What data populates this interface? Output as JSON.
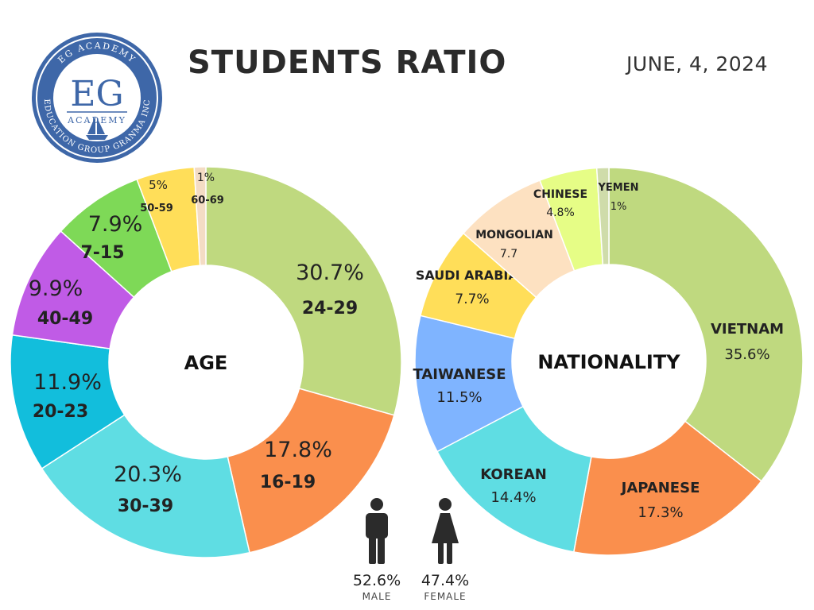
{
  "header": {
    "title": "STUDENTS RATIO",
    "date": "JUNE, 4, 2024"
  },
  "logo": {
    "top_text": "EG ACADEMY",
    "monogram": "EG",
    "sub_text": "ACADEMY",
    "bottom_text": "EDUCATION GROUP GRANMA INC",
    "color": "#3e67a8"
  },
  "gender": {
    "male": {
      "pct": "52.6%",
      "label": "MALE",
      "icon": "male-person-icon"
    },
    "female": {
      "pct": "47.4%",
      "label": "FEMALE",
      "icon": "female-person-icon"
    }
  },
  "chart_data": [
    {
      "type": "pie",
      "title": "AGE",
      "slices": [
        {
          "label": "24-29",
          "value": 30.7,
          "pct_text": "30.7%",
          "color": "#bfd97f"
        },
        {
          "label": "16-19",
          "value": 17.8,
          "pct_text": "17.8%",
          "color": "#fa8f4d"
        },
        {
          "label": "30-39",
          "value": 20.3,
          "pct_text": "20.3%",
          "color": "#5fdde3"
        },
        {
          "label": "20-23",
          "value": 11.9,
          "pct_text": "11.9%",
          "color": "#12bedc"
        },
        {
          "label": "40-49",
          "value": 9.9,
          "pct_text": "9.9%",
          "color": "#c05be6"
        },
        {
          "label": "7-15",
          "value": 7.9,
          "pct_text": "7.9%",
          "color": "#7ed957"
        },
        {
          "label": "50-59",
          "value": 5.0,
          "pct_text": "5%",
          "color": "#ffde59"
        },
        {
          "label": "60-69",
          "value": 1.0,
          "pct_text": "1%",
          "color": "#f4dcc4"
        }
      ]
    },
    {
      "type": "pie",
      "title": "NATIONALITY",
      "slices": [
        {
          "label": "VIETNAM",
          "value": 35.6,
          "pct_text": "35.6%",
          "color": "#bfd97f"
        },
        {
          "label": "JAPANESE",
          "value": 17.3,
          "pct_text": "17.3%",
          "color": "#fa8f4d"
        },
        {
          "label": "KOREAN",
          "value": 14.4,
          "pct_text": "14.4%",
          "color": "#5fdde3"
        },
        {
          "label": "TAIWANESE",
          "value": 11.5,
          "pct_text": "11.5%",
          "color": "#7fb4ff"
        },
        {
          "label": "SAUDI ARABIAN",
          "value": 7.7,
          "pct_text": "7.7%",
          "color": "#ffde59"
        },
        {
          "label": "MONGOLIAN",
          "value": 7.7,
          "pct_text": "7.7",
          "color": "#fde1c1"
        },
        {
          "label": "CHINESE",
          "value": 4.8,
          "pct_text": "4.8%",
          "color": "#e6fd86"
        },
        {
          "label": "YEMEN",
          "value": 1.0,
          "pct_text": "1%",
          "color": "#cfdcaa"
        }
      ]
    }
  ]
}
